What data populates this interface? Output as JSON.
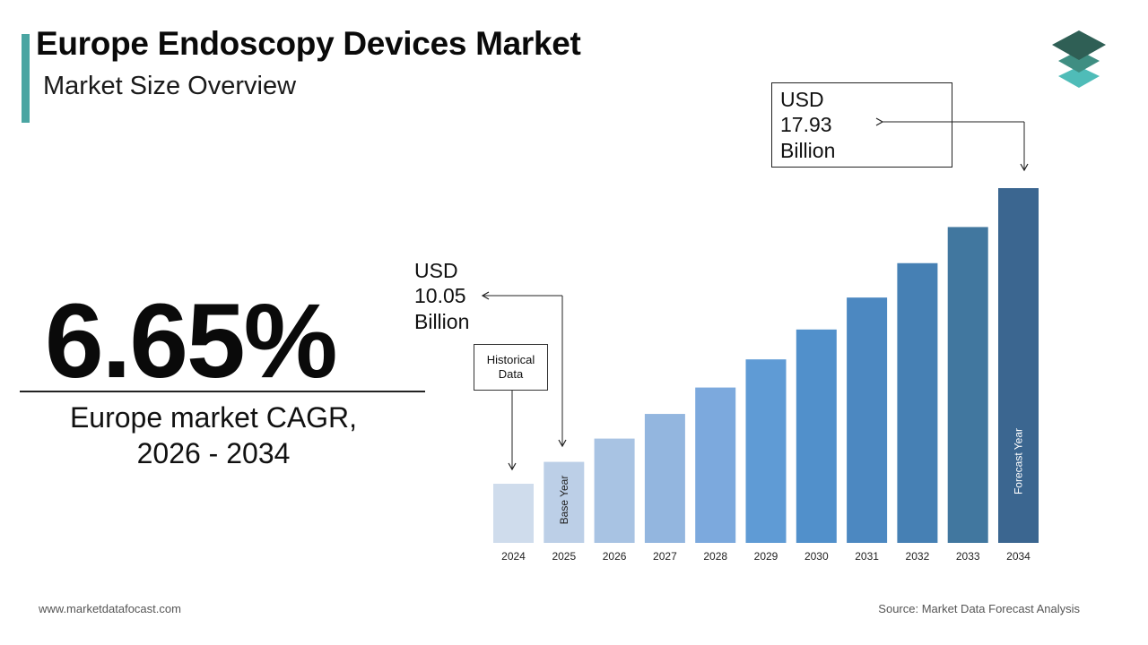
{
  "header": {
    "title": "Europe Endoscopy Devices Market",
    "subtitle": "Market Size Overview"
  },
  "cagr": {
    "value": "6.65%",
    "caption_line1": "Europe market CAGR,",
    "caption_line2": "2026 - 2034"
  },
  "callouts": {
    "end_value": [
      "USD",
      "17.93",
      "Billion"
    ],
    "base_value": [
      "USD",
      "10.05",
      "Billion"
    ],
    "historical": [
      "Historical",
      "Data"
    ]
  },
  "footer": {
    "website": "www.marketdatafocast.com",
    "source": "Source: Market Data Forecast Analysis"
  },
  "colors": {
    "accent": "#4aa5a2",
    "logo_top": "#2f5f55",
    "logo_mid": "#3f8e82",
    "logo_bottom": "#4fbcb8"
  },
  "chart_data": {
    "type": "bar",
    "categories": [
      "2024",
      "2025",
      "2026",
      "2027",
      "2028",
      "2029",
      "2030",
      "2031",
      "2032",
      "2033",
      "2034"
    ],
    "values": [
      9.42,
      10.05,
      10.72,
      11.43,
      12.19,
      13.0,
      13.86,
      14.78,
      15.77,
      16.81,
      17.93
    ],
    "colors": [
      "#cfdcec",
      "#bccfe7",
      "#a8c3e3",
      "#93b6df",
      "#7ca9dd",
      "#5f9bd5",
      "#5190cb",
      "#4c88c1",
      "#4680b4",
      "#41779f",
      "#3b6690"
    ],
    "bar_labels": {
      "2025": "Base Year",
      "2034": "Forecast Year"
    },
    "title": "",
    "xlabel": "",
    "ylabel": "",
    "grid": false,
    "legend": "none"
  }
}
